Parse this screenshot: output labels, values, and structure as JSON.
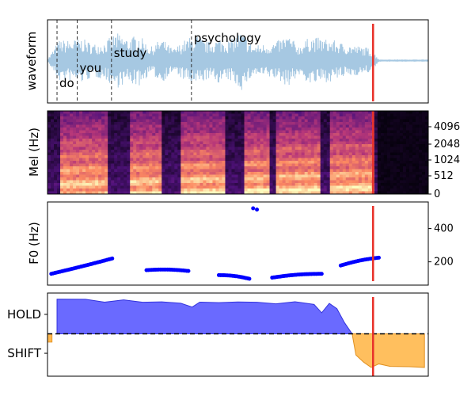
{
  "figure": {
    "panels": [
      "waveform",
      "mel",
      "f0",
      "turn"
    ]
  },
  "chart_data": [
    {
      "type": "line",
      "panel": "waveform",
      "ylabel": "waveform",
      "xlim": [
        0,
        1
      ],
      "color": "#a6c8e2",
      "words": [
        {
          "text": "do",
          "x": 0.025
        },
        {
          "text": "you",
          "x": 0.078
        },
        {
          "text": "study",
          "x": 0.168
        },
        {
          "text": "psychology",
          "x": 0.378
        }
      ],
      "word_boundaries": [
        0.025,
        0.078,
        0.168,
        0.378
      ],
      "cursor_x": 0.855,
      "cursor_color": "#e8322a",
      "speech_end_x": 0.87,
      "envelope_x": [
        0.0,
        0.03,
        0.06,
        0.09,
        0.12,
        0.15,
        0.18,
        0.21,
        0.24,
        0.27,
        0.3,
        0.33,
        0.36,
        0.39,
        0.42,
        0.45,
        0.48,
        0.51,
        0.54,
        0.57,
        0.6,
        0.63,
        0.66,
        0.69,
        0.72,
        0.75,
        0.78,
        0.81,
        0.84,
        0.855,
        0.87
      ],
      "envelope_amp": [
        0.03,
        0.55,
        0.55,
        0.6,
        0.45,
        0.5,
        0.75,
        0.6,
        0.7,
        0.35,
        0.6,
        0.3,
        0.55,
        0.7,
        0.5,
        0.6,
        0.55,
        0.8,
        0.4,
        0.45,
        0.5,
        0.7,
        0.4,
        0.65,
        0.6,
        0.55,
        0.45,
        0.4,
        0.35,
        0.25,
        0.05
      ]
    },
    {
      "type": "heatmap",
      "panel": "mel",
      "ylabel": "Mel (Hz)",
      "yticks": [
        "0",
        "512",
        "1024",
        "2048",
        "4096"
      ],
      "colormap": "magma",
      "cursor_x": 0.855,
      "speech_end_x": 0.87,
      "bright_segments": [
        [
          0.03,
          0.16
        ],
        [
          0.22,
          0.3
        ],
        [
          0.35,
          0.47
        ],
        [
          0.52,
          0.58
        ],
        [
          0.6,
          0.72
        ],
        [
          0.74,
          0.86
        ]
      ]
    },
    {
      "type": "scatter",
      "panel": "f0",
      "ylabel": "F0 (Hz)",
      "yticks": [
        200,
        400
      ],
      "ylim": [
        60,
        560
      ],
      "color": "#0000ff",
      "cursor_x": 0.855,
      "segments": [
        {
          "x0": 0.01,
          "x1": 0.17,
          "y0": 128,
          "y1": 220
        },
        {
          "x0": 0.26,
          "x1": 0.37,
          "y0": 150,
          "y1": 145
        },
        {
          "x0": 0.45,
          "x1": 0.53,
          "y0": 120,
          "y1": 98
        },
        {
          "x0": 0.59,
          "x1": 0.72,
          "y0": 105,
          "y1": 128
        },
        {
          "x0": 0.77,
          "x1": 0.87,
          "y0": 178,
          "y1": 225
        }
      ],
      "outliers": [
        {
          "x": 0.54,
          "y": 522
        },
        {
          "x": 0.55,
          "y": 514
        }
      ]
    },
    {
      "type": "area",
      "panel": "turn",
      "yticks": [
        "HOLD",
        "SHIFT"
      ],
      "ylim": [
        -1,
        1
      ],
      "threshold": 0,
      "hold_color": "#5555ff",
      "shift_color": "#ffb84d",
      "cursor_x": 0.855,
      "hold_x": [
        0.025,
        0.1,
        0.15,
        0.2,
        0.25,
        0.3,
        0.35,
        0.38,
        0.4,
        0.45,
        0.5,
        0.55,
        0.6,
        0.65,
        0.7,
        0.72,
        0.74,
        0.76,
        0.78,
        0.8
      ],
      "hold_y": [
        0.98,
        0.96,
        0.9,
        0.95,
        0.9,
        0.92,
        0.88,
        0.75,
        0.88,
        0.9,
        0.92,
        0.88,
        0.85,
        0.9,
        0.85,
        0.6,
        0.88,
        0.7,
        0.3,
        0.0
      ],
      "shift_x": [
        0.8,
        0.81,
        0.83,
        0.85,
        0.86,
        0.87,
        0.9,
        0.95,
        0.99
      ],
      "shift_y": [
        0.0,
        -0.6,
        -0.8,
        -0.95,
        -0.9,
        -0.85,
        -0.92,
        -0.93,
        -0.95
      ],
      "start_blip": -0.1
    }
  ]
}
